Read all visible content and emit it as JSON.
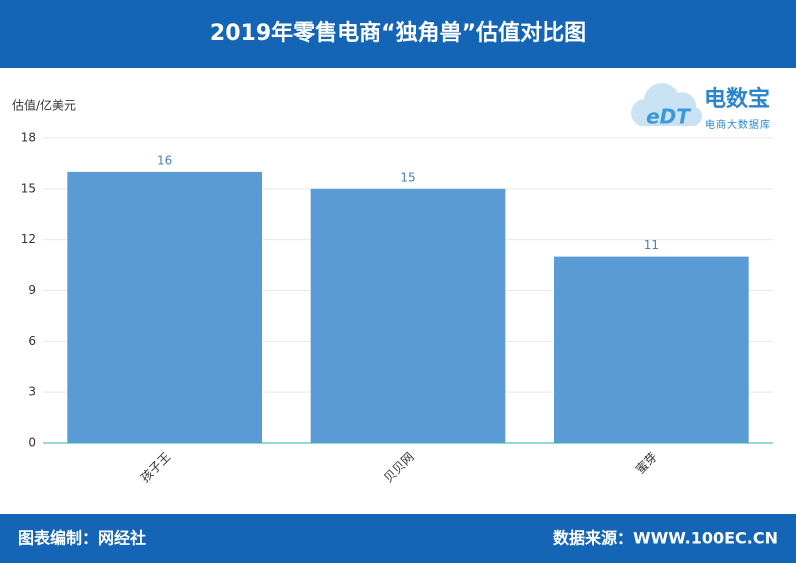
{
  "chart_data": {
    "type": "bar",
    "title": "2019年零售电商“独角兽”估值对比图",
    "y_label": "估值/亿美元",
    "categories": [
      "孩子王",
      "贝贝网",
      "蜜芽"
    ],
    "values": [
      16,
      15,
      11
    ],
    "color": "#5b9bd5",
    "ylim": [
      0,
      18
    ],
    "yticks": [
      0,
      3,
      6,
      9,
      12,
      15,
      18
    ],
    "grid": true
  },
  "logo": {
    "mark": "eDT",
    "name": "电数宝",
    "tagline": "电商大数据库"
  },
  "footer": {
    "left": "图表编制：网经社",
    "right": "数据来源：WWW.100EC.CN"
  }
}
